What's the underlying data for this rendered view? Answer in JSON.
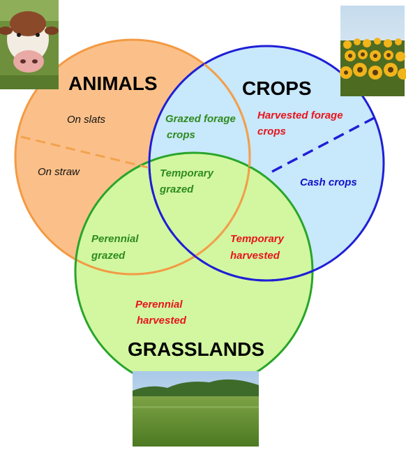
{
  "titles": {
    "animals": "ANIMALS",
    "crops": "CROPS",
    "grasslands": "GRASSLANDS"
  },
  "labels": {
    "on_slats": "On slats",
    "on_straw": "On straw",
    "grazed_forage_crops": [
      "Grazed forage",
      "crops"
    ],
    "harvested_forage_crops": [
      "Harvested forage",
      "crops"
    ],
    "temporary_grazed": [
      "Temporary",
      "grazed"
    ],
    "cash_crops": "Cash crops",
    "perennial_grazed": [
      "Perennial",
      "grazed"
    ],
    "temporary_harvested": [
      "Temporary",
      "harvested"
    ],
    "perennial_harvested": [
      "Perennial",
      "harvested"
    ]
  },
  "colors": {
    "animals_fill": "#fbc089",
    "animals_stroke": "#f39a44",
    "crops_fill": "#c8e8fb",
    "crops_stroke": "#1f1fd6",
    "grasslands_fill": "#d2f7a0",
    "grasslands_stroke": "#29a52a",
    "green_text": "#2e8b1e",
    "red_text": "#e8141c",
    "blue_text": "#1010c8",
    "black_text": "#111111"
  },
  "photos": {
    "cow": "cow-photo",
    "sunflowers": "sunflower-field-photo",
    "meadow": "grassland-meadow-photo"
  }
}
